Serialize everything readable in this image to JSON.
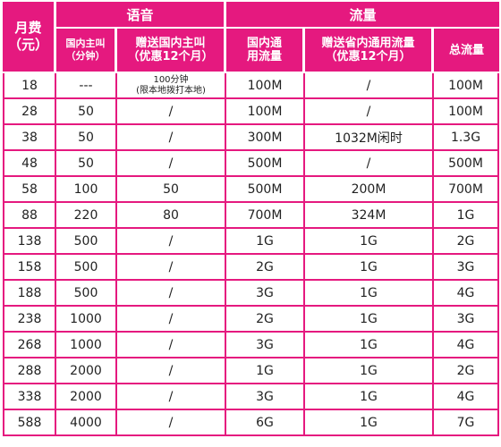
{
  "header": {
    "monthly_fee_line1": "月费",
    "monthly_fee_line2": "（元）",
    "voice": "语音",
    "data": "流量",
    "voice_domestic_line1": "国内主叫",
    "voice_domestic_line2": "（分钟）",
    "voice_bonus_line1": "赠送国内主叫",
    "voice_bonus_line2": "（优惠12个月）",
    "data_domestic_line1": "国内通",
    "data_domestic_line2": "用流量",
    "data_bonus_line1": "赠送省内通用流量",
    "data_bonus_line2": "（优惠12个月）",
    "data_total": "总流量"
  },
  "rows": [
    {
      "fee": "18",
      "voice": "---",
      "voice_bonus": "100分钟",
      "voice_bonus_note": "(限本地拨打本地)",
      "data": "100M",
      "data_bonus": "/",
      "total": "100M"
    },
    {
      "fee": "28",
      "voice": "50",
      "voice_bonus": "/",
      "voice_bonus_note": "",
      "data": "100M",
      "data_bonus": "/",
      "total": "100M"
    },
    {
      "fee": "38",
      "voice": "50",
      "voice_bonus": "/",
      "voice_bonus_note": "",
      "data": "300M",
      "data_bonus": "1032M闲时",
      "total": "1.3G"
    },
    {
      "fee": "48",
      "voice": "50",
      "voice_bonus": "/",
      "voice_bonus_note": "",
      "data": "500M",
      "data_bonus": "/",
      "total": "500M"
    },
    {
      "fee": "58",
      "voice": "100",
      "voice_bonus": "50",
      "voice_bonus_note": "",
      "data": "500M",
      "data_bonus": "200M",
      "total": "700M"
    },
    {
      "fee": "88",
      "voice": "220",
      "voice_bonus": "80",
      "voice_bonus_note": "",
      "data": "700M",
      "data_bonus": "324M",
      "total": "1G"
    },
    {
      "fee": "138",
      "voice": "500",
      "voice_bonus": "/",
      "voice_bonus_note": "",
      "data": "1G",
      "data_bonus": "1G",
      "total": "2G"
    },
    {
      "fee": "158",
      "voice": "500",
      "voice_bonus": "/",
      "voice_bonus_note": "",
      "data": "2G",
      "data_bonus": "1G",
      "total": "3G"
    },
    {
      "fee": "188",
      "voice": "500",
      "voice_bonus": "/",
      "voice_bonus_note": "",
      "data": "3G",
      "data_bonus": "1G",
      "total": "4G"
    },
    {
      "fee": "238",
      "voice": "1000",
      "voice_bonus": "/",
      "voice_bonus_note": "",
      "data": "2G",
      "data_bonus": "1G",
      "total": "3G"
    },
    {
      "fee": "268",
      "voice": "1000",
      "voice_bonus": "/",
      "voice_bonus_note": "",
      "data": "3G",
      "data_bonus": "1G",
      "total": "4G"
    },
    {
      "fee": "288",
      "voice": "2000",
      "voice_bonus": "/",
      "voice_bonus_note": "",
      "data": "1G",
      "data_bonus": "1G",
      "total": "2G"
    },
    {
      "fee": "338",
      "voice": "2000",
      "voice_bonus": "/",
      "voice_bonus_note": "",
      "data": "3G",
      "data_bonus": "1G",
      "total": "4G"
    },
    {
      "fee": "588",
      "voice": "4000",
      "voice_bonus": "/",
      "voice_bonus_note": "",
      "data": "6G",
      "data_bonus": "1G",
      "total": "7G"
    }
  ],
  "colors": {
    "header_bg": "#e5197f",
    "grid": "#e5197f",
    "text": "#222222"
  }
}
